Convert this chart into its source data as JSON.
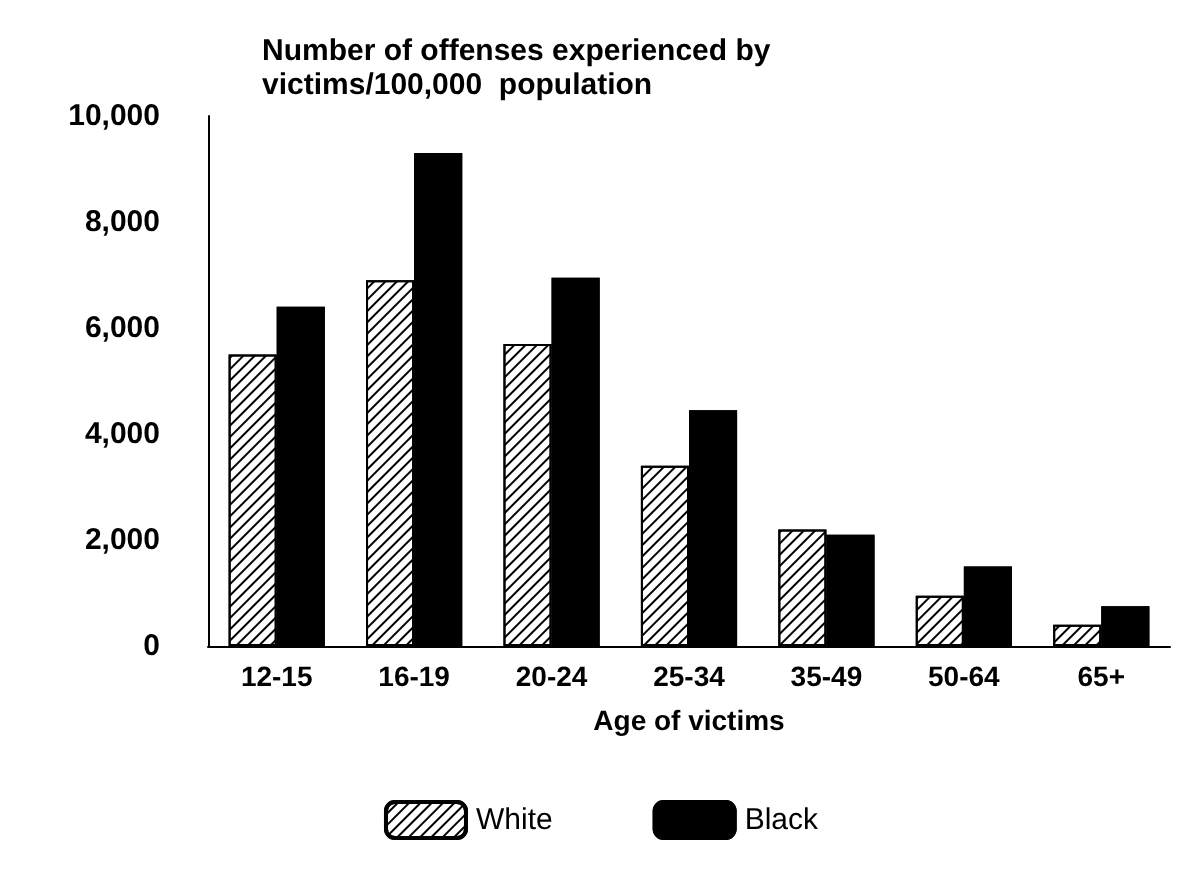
{
  "chart_data": {
    "type": "bar",
    "title": "Number of offenses experienced by\nvictims/100,000  population",
    "xlabel": "Age of victims",
    "categories": [
      "12-15",
      "16-19",
      "20-24",
      "25-34",
      "35-49",
      "50-64",
      "65+"
    ],
    "series": [
      {
        "name": "White",
        "color": "#ffffff",
        "values": [
          5500,
          6900,
          5700,
          3400,
          2200,
          950,
          400
        ]
      },
      {
        "name": "Black",
        "color": "#000000",
        "values": [
          6400,
          9300,
          6950,
          4450,
          2100,
          1500,
          750
        ]
      }
    ],
    "ylim": [
      0,
      10000
    ],
    "yticks": [
      0,
      {
        "value": 2000,
        "label": "2,000"
      },
      {
        "value": 4000,
        "label": "4,000"
      },
      {
        "value": 6000,
        "label": "6,000"
      },
      {
        "value": 8000,
        "label": "8,000"
      },
      {
        "value": 10000,
        "label": "10,000"
      }
    ],
    "grid": false,
    "legend": "bottom"
  }
}
